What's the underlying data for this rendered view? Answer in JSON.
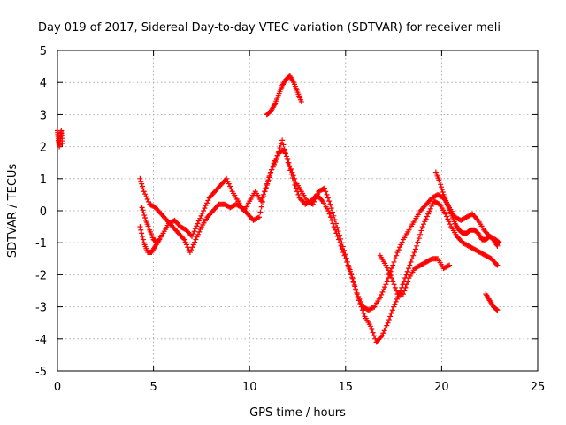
{
  "chart_data": {
    "type": "scatter",
    "title": "Day 019 of 2017, Sidereal Day-to-day VTEC variation (SDTVAR) for receiver meli",
    "xlabel": "GPS time / hours",
    "ylabel": "SDTVAR / TECUs",
    "xlim": [
      0,
      25
    ],
    "ylim": [
      -5,
      5
    ],
    "xticks": [
      0,
      5,
      10,
      15,
      20,
      25
    ],
    "yticks": [
      -5,
      -4,
      -3,
      -2,
      -1,
      0,
      1,
      2,
      3,
      4,
      5
    ],
    "grid": true,
    "marker": "+",
    "marker_color": "#ff0000",
    "series": [
      {
        "name": "s1",
        "points": [
          [
            0.0,
            2.5
          ],
          [
            0.05,
            2.2
          ],
          [
            0.1,
            2.0
          ],
          [
            0.15,
            2.3
          ],
          [
            0.2,
            2.5
          ],
          [
            0.25,
            2.1
          ]
        ]
      },
      {
        "name": "s2",
        "points": [
          [
            4.3,
            1.0
          ],
          [
            4.5,
            0.6
          ],
          [
            4.8,
            0.2
          ],
          [
            5.1,
            0.1
          ],
          [
            5.4,
            -0.1
          ],
          [
            5.7,
            -0.3
          ],
          [
            6.0,
            -0.5
          ],
          [
            6.3,
            -0.7
          ],
          [
            6.6,
            -0.9
          ],
          [
            6.9,
            -1.3
          ],
          [
            7.2,
            -0.9
          ],
          [
            7.5,
            -0.5
          ],
          [
            7.8,
            -0.2
          ],
          [
            8.1,
            0.0
          ],
          [
            8.4,
            0.2
          ],
          [
            8.7,
            0.2
          ],
          [
            9.0,
            0.1
          ],
          [
            9.3,
            0.2
          ],
          [
            9.6,
            0.1
          ],
          [
            9.9,
            -0.1
          ],
          [
            10.2,
            -0.3
          ],
          [
            10.5,
            -0.2
          ],
          [
            10.8,
            0.6
          ],
          [
            11.1,
            1.2
          ],
          [
            11.4,
            1.6
          ],
          [
            11.7,
            2.2
          ],
          [
            12.0,
            1.5
          ],
          [
            12.3,
            0.9
          ],
          [
            12.6,
            0.4
          ],
          [
            12.9,
            0.2
          ],
          [
            13.2,
            0.3
          ],
          [
            13.5,
            0.5
          ],
          [
            13.8,
            0.3
          ],
          [
            14.1,
            0.0
          ],
          [
            14.4,
            -0.5
          ],
          [
            14.7,
            -1.0
          ],
          [
            15.0,
            -1.5
          ],
          [
            15.3,
            -2.0
          ],
          [
            15.6,
            -2.6
          ],
          [
            15.9,
            -3.0
          ],
          [
            16.2,
            -3.1
          ],
          [
            16.5,
            -3.0
          ],
          [
            16.8,
            -2.7
          ],
          [
            17.1,
            -2.3
          ],
          [
            17.4,
            -1.8
          ],
          [
            17.7,
            -1.3
          ],
          [
            18.0,
            -0.9
          ],
          [
            18.3,
            -0.6
          ],
          [
            18.6,
            -0.3
          ],
          [
            18.9,
            0.0
          ],
          [
            19.2,
            0.2
          ],
          [
            19.5,
            0.4
          ],
          [
            19.8,
            0.5
          ],
          [
            20.1,
            0.4
          ],
          [
            20.4,
            0.1
          ],
          [
            20.7,
            -0.2
          ],
          [
            21.0,
            -0.3
          ],
          [
            21.3,
            -0.2
          ],
          [
            21.6,
            -0.1
          ],
          [
            21.9,
            -0.3
          ],
          [
            22.2,
            -0.6
          ],
          [
            22.5,
            -0.8
          ],
          [
            22.8,
            -0.9
          ],
          [
            23.0,
            -1.0
          ]
        ]
      },
      {
        "name": "s3",
        "points": [
          [
            4.4,
            0.1
          ],
          [
            4.6,
            -0.3
          ],
          [
            4.8,
            -0.6
          ],
          [
            5.0,
            -0.9
          ],
          [
            5.2,
            -1.0
          ],
          [
            5.5,
            -0.7
          ],
          [
            5.8,
            -0.4
          ],
          [
            6.1,
            -0.3
          ],
          [
            6.4,
            -0.5
          ],
          [
            6.7,
            -0.6
          ],
          [
            7.0,
            -0.8
          ],
          [
            7.3,
            -0.4
          ],
          [
            7.6,
            0.0
          ],
          [
            7.9,
            0.4
          ],
          [
            8.2,
            0.6
          ],
          [
            8.5,
            0.8
          ],
          [
            8.8,
            1.0
          ],
          [
            9.1,
            0.6
          ],
          [
            9.4,
            0.3
          ],
          [
            9.7,
            0.0
          ],
          [
            10.0,
            0.3
          ],
          [
            10.3,
            0.6
          ],
          [
            10.6,
            0.3
          ],
          [
            10.9,
            0.8
          ],
          [
            11.2,
            1.4
          ],
          [
            11.5,
            1.8
          ],
          [
            11.8,
            1.9
          ],
          [
            12.1,
            1.4
          ],
          [
            12.4,
            0.9
          ],
          [
            12.7,
            0.6
          ],
          [
            13.0,
            0.3
          ],
          [
            13.3,
            0.2
          ],
          [
            13.6,
            0.6
          ],
          [
            13.9,
            0.7
          ],
          [
            14.2,
            0.2
          ],
          [
            14.5,
            -0.4
          ],
          [
            14.8,
            -1.0
          ],
          [
            15.1,
            -1.6
          ],
          [
            15.4,
            -2.2
          ],
          [
            15.7,
            -2.8
          ],
          [
            16.0,
            -3.3
          ],
          [
            16.3,
            -3.6
          ],
          [
            16.6,
            -4.1
          ],
          [
            16.9,
            -3.9
          ],
          [
            17.2,
            -3.5
          ],
          [
            17.5,
            -3.0
          ],
          [
            17.8,
            -2.6
          ],
          [
            18.1,
            -2.1
          ],
          [
            18.4,
            -1.6
          ],
          [
            18.7,
            -1.1
          ],
          [
            19.0,
            -0.5
          ],
          [
            19.3,
            -0.1
          ],
          [
            19.6,
            0.3
          ],
          [
            19.9,
            0.2
          ],
          [
            20.2,
            -0.1
          ],
          [
            20.5,
            -0.5
          ],
          [
            20.8,
            -0.8
          ],
          [
            21.1,
            -1.0
          ],
          [
            21.4,
            -1.1
          ],
          [
            21.7,
            -1.2
          ],
          [
            22.0,
            -1.3
          ],
          [
            22.3,
            -1.4
          ],
          [
            22.6,
            -1.5
          ],
          [
            22.9,
            -1.7
          ]
        ]
      },
      {
        "name": "s4",
        "points": [
          [
            4.3,
            -0.5
          ],
          [
            4.5,
            -1.0
          ],
          [
            4.7,
            -1.3
          ],
          [
            4.9,
            -1.3
          ],
          [
            5.1,
            -1.1
          ],
          [
            5.3,
            -0.9
          ]
        ]
      },
      {
        "name": "s5",
        "points": [
          [
            10.9,
            3.0
          ],
          [
            11.1,
            3.1
          ],
          [
            11.3,
            3.3
          ],
          [
            11.5,
            3.6
          ],
          [
            11.7,
            3.9
          ],
          [
            11.9,
            4.1
          ],
          [
            12.1,
            4.2
          ],
          [
            12.3,
            4.0
          ],
          [
            12.5,
            3.7
          ],
          [
            12.7,
            3.4
          ]
        ]
      },
      {
        "name": "s6",
        "points": [
          [
            19.7,
            1.2
          ],
          [
            19.9,
            0.9
          ],
          [
            20.1,
            0.5
          ],
          [
            20.3,
            0.2
          ],
          [
            20.5,
            -0.1
          ],
          [
            20.7,
            -0.4
          ],
          [
            20.9,
            -0.6
          ],
          [
            21.1,
            -0.7
          ],
          [
            21.3,
            -0.7
          ],
          [
            21.5,
            -0.6
          ],
          [
            21.7,
            -0.6
          ],
          [
            21.9,
            -0.7
          ],
          [
            22.1,
            -0.9
          ],
          [
            22.3,
            -0.9
          ],
          [
            22.5,
            -0.8
          ],
          [
            22.7,
            -0.9
          ],
          [
            22.9,
            -1.1
          ]
        ]
      },
      {
        "name": "s7",
        "points": [
          [
            16.8,
            -1.4
          ],
          [
            17.1,
            -1.7
          ],
          [
            17.4,
            -2.1
          ],
          [
            17.7,
            -2.6
          ],
          [
            18.0,
            -2.6
          ],
          [
            18.3,
            -2.1
          ],
          [
            18.6,
            -1.8
          ],
          [
            18.9,
            -1.7
          ],
          [
            19.2,
            -1.6
          ],
          [
            19.5,
            -1.5
          ],
          [
            19.8,
            -1.5
          ],
          [
            20.1,
            -1.8
          ],
          [
            20.4,
            -1.7
          ]
        ]
      },
      {
        "name": "s8",
        "points": [
          [
            22.3,
            -2.6
          ],
          [
            22.5,
            -2.8
          ],
          [
            22.7,
            -3.0
          ],
          [
            22.9,
            -3.1
          ]
        ]
      }
    ]
  }
}
